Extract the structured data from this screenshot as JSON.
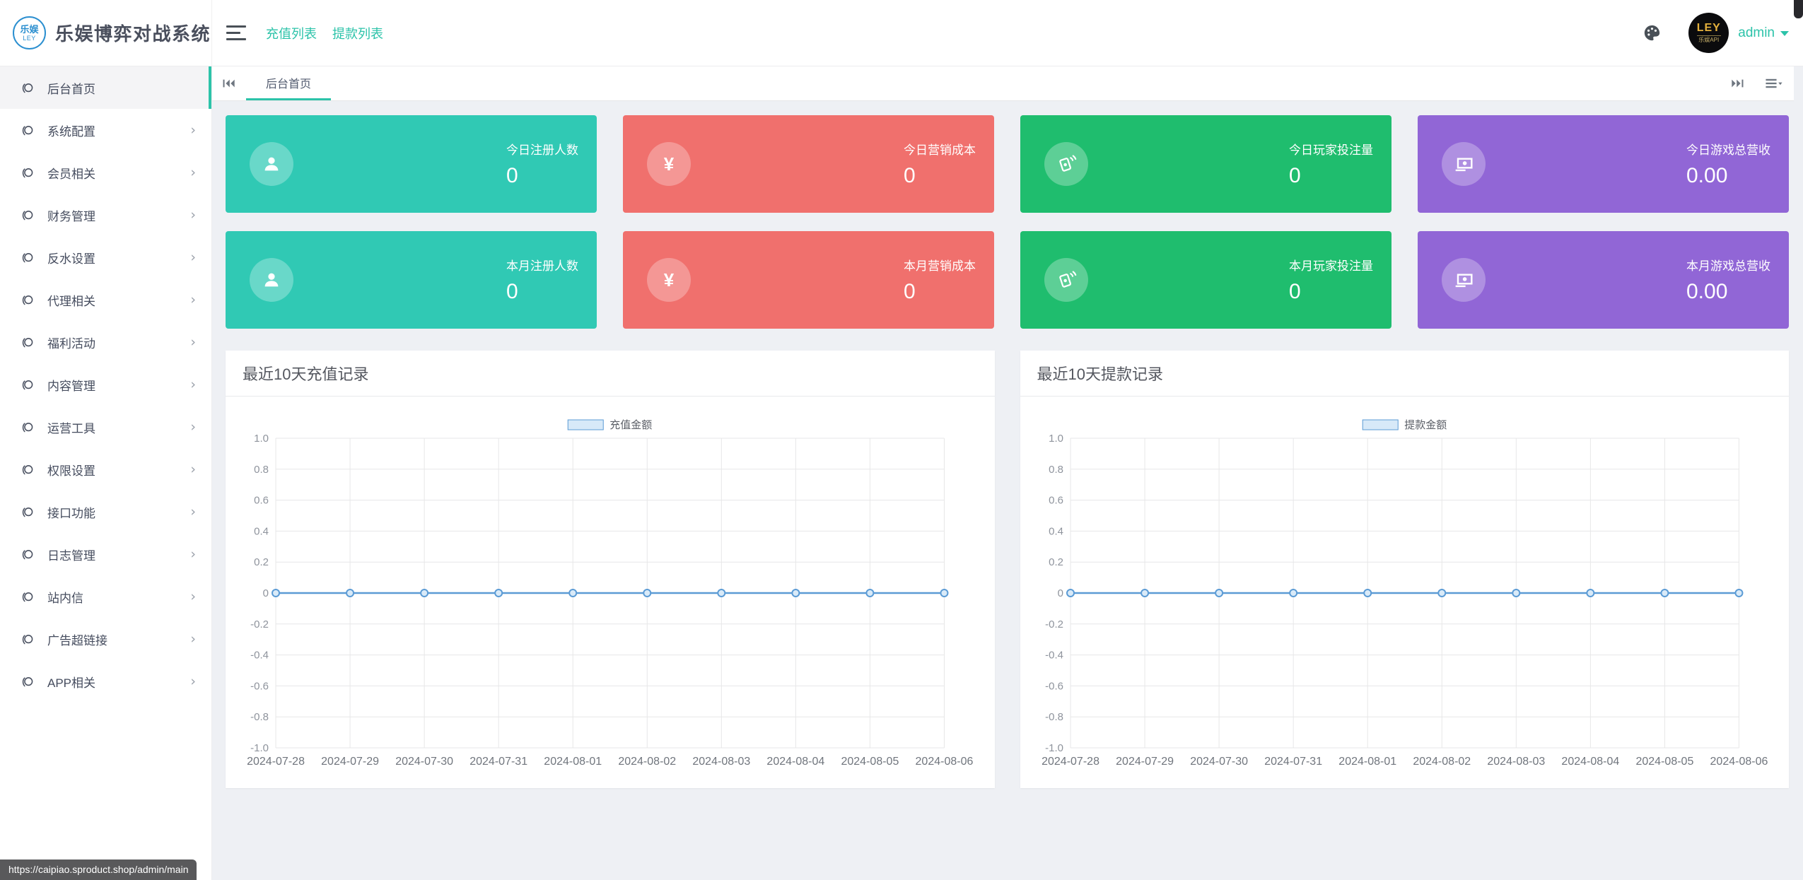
{
  "app": {
    "title": "乐娱博弈对战系统",
    "logo_top": "乐娱",
    "logo_bottom": "LEY"
  },
  "topbar": {
    "links": [
      "充值列表",
      "提款列表"
    ],
    "user": "admin",
    "avatar_title": "LEY",
    "avatar_subtitle": "乐娱API",
    "icons": [
      "menu-icon",
      "palette-icon",
      "caret-down-icon"
    ]
  },
  "sidebar": {
    "items": [
      {
        "label": "后台首页",
        "icon": "circle-icon",
        "active": true,
        "has_children": false
      },
      {
        "label": "系统配置",
        "icon": "circle-icon",
        "active": false,
        "has_children": true
      },
      {
        "label": "会员相关",
        "icon": "circle-icon",
        "active": false,
        "has_children": true
      },
      {
        "label": "财务管理",
        "icon": "circle-icon",
        "active": false,
        "has_children": true
      },
      {
        "label": "反水设置",
        "icon": "circle-icon",
        "active": false,
        "has_children": true
      },
      {
        "label": "代理相关",
        "icon": "circle-icon",
        "active": false,
        "has_children": true
      },
      {
        "label": "福利活动",
        "icon": "circle-icon",
        "active": false,
        "has_children": true
      },
      {
        "label": "内容管理",
        "icon": "circle-icon",
        "active": false,
        "has_children": true
      },
      {
        "label": "运营工具",
        "icon": "circle-icon",
        "active": false,
        "has_children": true
      },
      {
        "label": "权限设置",
        "icon": "circle-icon",
        "active": false,
        "has_children": true
      },
      {
        "label": "接口功能",
        "icon": "circle-icon",
        "active": false,
        "has_children": true
      },
      {
        "label": "日志管理",
        "icon": "circle-icon",
        "active": false,
        "has_children": true
      },
      {
        "label": "站内信",
        "icon": "circle-icon",
        "active": false,
        "has_children": true
      },
      {
        "label": "广告超链接",
        "icon": "circle-icon",
        "active": false,
        "has_children": true
      },
      {
        "label": "APP相关",
        "icon": "circle-icon",
        "active": false,
        "has_children": true
      }
    ]
  },
  "tabs": {
    "active_label": "后台首页",
    "scroll_left_icon": "tabs-scroll-left-icon",
    "scroll_right_icon": "tabs-scroll-right-icon",
    "menu_icon": "tabs-menu-icon"
  },
  "cards": [
    {
      "label": "今日注册人数",
      "value": "0",
      "color": "#30c9b4",
      "icon": "user-icon"
    },
    {
      "label": "今日营销成本",
      "value": "0",
      "color": "#f0706d",
      "icon": "yuan-icon"
    },
    {
      "label": "今日玩家投注量",
      "value": "0",
      "color": "#1fbd6e",
      "icon": "bet-cards-icon"
    },
    {
      "label": "今日游戏总营收",
      "value": "0.00",
      "color": "#9166d6",
      "icon": "banknote-icon"
    },
    {
      "label": "本月注册人数",
      "value": "0",
      "color": "#30c9b4",
      "icon": "user-icon"
    },
    {
      "label": "本月营销成本",
      "value": "0",
      "color": "#f0706d",
      "icon": "yuan-icon"
    },
    {
      "label": "本月玩家投注量",
      "value": "0",
      "color": "#1fbd6e",
      "icon": "bet-cards-icon"
    },
    {
      "label": "本月游戏总营收",
      "value": "0.00",
      "color": "#9166d6",
      "icon": "banknote-icon"
    }
  ],
  "chart_data": [
    {
      "type": "line",
      "title": "最近10天充值记录",
      "legend": "充值金额",
      "legend_position": "top",
      "grid": true,
      "x": [
        "2024-07-28",
        "2024-07-29",
        "2024-07-30",
        "2024-07-31",
        "2024-08-01",
        "2024-08-02",
        "2024-08-03",
        "2024-08-04",
        "2024-08-05",
        "2024-08-06"
      ],
      "series": [
        {
          "name": "充值金额",
          "values": [
            0,
            0,
            0,
            0,
            0,
            0,
            0,
            0,
            0,
            0
          ]
        }
      ],
      "ylim": [
        -1,
        1
      ],
      "ytick_step": 0.2,
      "line_color": "#5b9bd5",
      "marker_fill": "#d9eaf8"
    },
    {
      "type": "line",
      "title": "最近10天提款记录",
      "legend": "提款金额",
      "legend_position": "top",
      "grid": true,
      "x": [
        "2024-07-28",
        "2024-07-29",
        "2024-07-30",
        "2024-07-31",
        "2024-08-01",
        "2024-08-02",
        "2024-08-03",
        "2024-08-04",
        "2024-08-05",
        "2024-08-06"
      ],
      "series": [
        {
          "name": "提款金额",
          "values": [
            0,
            0,
            0,
            0,
            0,
            0,
            0,
            0,
            0,
            0
          ]
        }
      ],
      "ylim": [
        -1,
        1
      ],
      "ytick_step": 0.2,
      "line_color": "#5b9bd5",
      "marker_fill": "#d9eaf8"
    }
  ],
  "statusbar": {
    "url": "https://caipiao.sproduct.shop/admin/main"
  },
  "colors": {
    "accent_teal": "#2cc3a9",
    "card_teal": "#30c9b4",
    "card_red": "#f0706d",
    "card_green": "#1fbd6e",
    "card_purple": "#9166d6",
    "chart_line": "#5b9bd5",
    "logo_blue": "#2b8fd0",
    "content_bg": "#eef0f4"
  }
}
